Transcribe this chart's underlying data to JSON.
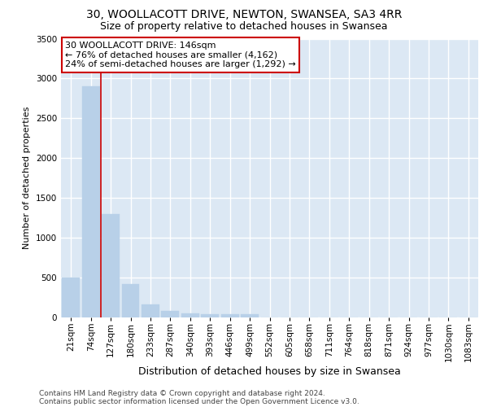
{
  "title1": "30, WOOLLACOTT DRIVE, NEWTON, SWANSEA, SA3 4RR",
  "title2": "Size of property relative to detached houses in Swansea",
  "xlabel": "Distribution of detached houses by size in Swansea",
  "ylabel": "Number of detached properties",
  "categories": [
    "21sqm",
    "74sqm",
    "127sqm",
    "180sqm",
    "233sqm",
    "287sqm",
    "340sqm",
    "393sqm",
    "446sqm",
    "499sqm",
    "552sqm",
    "605sqm",
    "658sqm",
    "711sqm",
    "764sqm",
    "818sqm",
    "871sqm",
    "924sqm",
    "977sqm",
    "1030sqm",
    "1083sqm"
  ],
  "values": [
    500,
    2900,
    1300,
    420,
    160,
    80,
    50,
    45,
    40,
    40,
    0,
    0,
    0,
    0,
    0,
    0,
    0,
    0,
    0,
    0,
    0
  ],
  "bar_color": "#b8d0e8",
  "bar_edge_color": "#b8d0e8",
  "background_color": "#dce8f4",
  "grid_color": "#ffffff",
  "red_line_color": "#cc0000",
  "annotation_text": "30 WOOLLACOTT DRIVE: 146sqm\n← 76% of detached houses are smaller (4,162)\n24% of semi-detached houses are larger (1,292) →",
  "annotation_box_color": "#ffffff",
  "annotation_box_edge": "#cc0000",
  "ylim": [
    0,
    3500
  ],
  "yticks": [
    0,
    500,
    1000,
    1500,
    2000,
    2500,
    3000,
    3500
  ],
  "footnote1": "Contains HM Land Registry data © Crown copyright and database right 2024.",
  "footnote2": "Contains public sector information licensed under the Open Government Licence v3.0.",
  "title1_fontsize": 10,
  "title2_fontsize": 9,
  "xlabel_fontsize": 9,
  "ylabel_fontsize": 8,
  "tick_fontsize": 7.5,
  "annotation_fontsize": 8,
  "footnote_fontsize": 6.5
}
